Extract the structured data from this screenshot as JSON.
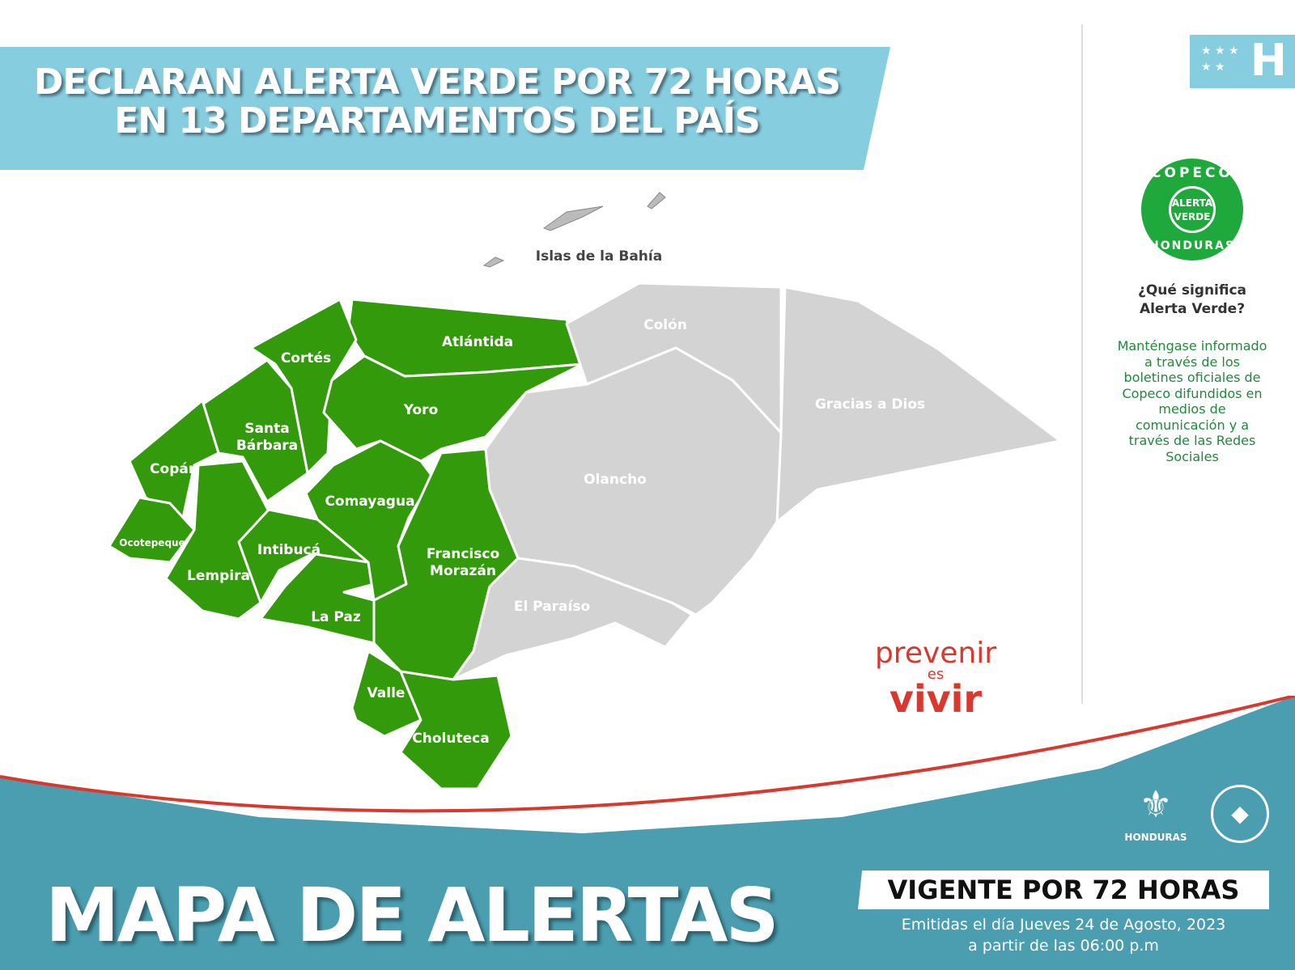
{
  "header": {
    "title_line1": "DECLARAN ALERTA VERDE POR 72 HORAS",
    "title_line2": "EN 13 DEPARTAMENTOS DEL PAÍS"
  },
  "flag": {
    "letter": "H",
    "stars": "★ ★ ★ ★ ★"
  },
  "seal": {
    "top": "COPECO",
    "inner_line1": "ALERTA",
    "inner_line2": "VERDE",
    "bottom": "HONDURAS",
    "color": "#1fa83c"
  },
  "sidebar": {
    "question": "¿Qué significa Alerta Verde?",
    "answer": "Manténgase informado a través de los boletines oficiales de Copeco difundidos en medios de comunicación y a través de las Redes Sociales"
  },
  "map": {
    "colors": {
      "alert_green": "#339a0c",
      "no_alert": "#d3d3d3"
    },
    "islands_label": "Islas de la Bahía",
    "departments": [
      {
        "name": "Atlántida",
        "alert": "verde"
      },
      {
        "name": "Cortés",
        "alert": "verde"
      },
      {
        "name": "Yoro",
        "alert": "verde"
      },
      {
        "name": "Santa Bárbara",
        "alert": "verde"
      },
      {
        "name": "Copán",
        "alert": "verde"
      },
      {
        "name": "Ocotepeque",
        "alert": "verde"
      },
      {
        "name": "Lempira",
        "alert": "verde"
      },
      {
        "name": "Intibucá",
        "alert": "verde"
      },
      {
        "name": "La Paz",
        "alert": "verde"
      },
      {
        "name": "Comayagua",
        "alert": "verde"
      },
      {
        "name": "Francisco Morazán",
        "alert": "verde"
      },
      {
        "name": "Valle",
        "alert": "verde"
      },
      {
        "name": "Choluteca",
        "alert": "verde"
      },
      {
        "name": "Colón",
        "alert": "none"
      },
      {
        "name": "Gracias a Dios",
        "alert": "none"
      },
      {
        "name": "Olancho",
        "alert": "none"
      },
      {
        "name": "El Paraíso",
        "alert": "none"
      }
    ]
  },
  "slogan": {
    "line1": "prevenir",
    "line2": "es",
    "line3": "vivir"
  },
  "footer": {
    "title": "MAPA DE ALERTAS",
    "validity": "VIGENTE POR 72 HORAS",
    "issued_line1": "Emitidas el día Jueves 24 de Agosto, 2023",
    "issued_line2": "a partir de las 06:00 p.m",
    "gov_logo": "HONDURAS",
    "copeco_logo": "COPECO HONDURAS"
  }
}
